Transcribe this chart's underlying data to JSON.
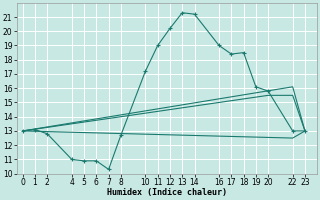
{
  "xlabel": "Humidex (Indice chaleur)",
  "bg_color": "#c8e8e4",
  "grid_color": "#ffffff",
  "line_color": "#1a7a6e",
  "main_x": [
    0,
    1,
    2,
    4,
    5,
    6,
    7,
    8,
    10,
    11,
    12,
    13,
    14,
    16,
    17,
    18,
    19,
    20,
    22,
    23
  ],
  "main_y": [
    13.0,
    13.1,
    12.8,
    11.0,
    10.9,
    10.9,
    10.3,
    12.7,
    17.2,
    19.0,
    20.2,
    21.3,
    21.2,
    19.0,
    18.4,
    18.5,
    16.1,
    15.8,
    13.0,
    13.0
  ],
  "line2_x": [
    0,
    22,
    23
  ],
  "line2_y": [
    13.0,
    16.1,
    13.0
  ],
  "line3_x": [
    0,
    20,
    22,
    23
  ],
  "line3_y": [
    13.0,
    15.5,
    15.5,
    13.0
  ],
  "line4_x": [
    0,
    22,
    23
  ],
  "line4_y": [
    13.0,
    12.5,
    13.0
  ],
  "ylim": [
    10,
    22
  ],
  "xlim": [
    -0.5,
    24
  ],
  "yticks": [
    10,
    11,
    12,
    13,
    14,
    15,
    16,
    17,
    18,
    19,
    20,
    21
  ],
  "xticks": [
    0,
    1,
    2,
    4,
    5,
    6,
    7,
    8,
    10,
    11,
    12,
    13,
    14,
    16,
    17,
    18,
    19,
    20,
    22,
    23
  ]
}
